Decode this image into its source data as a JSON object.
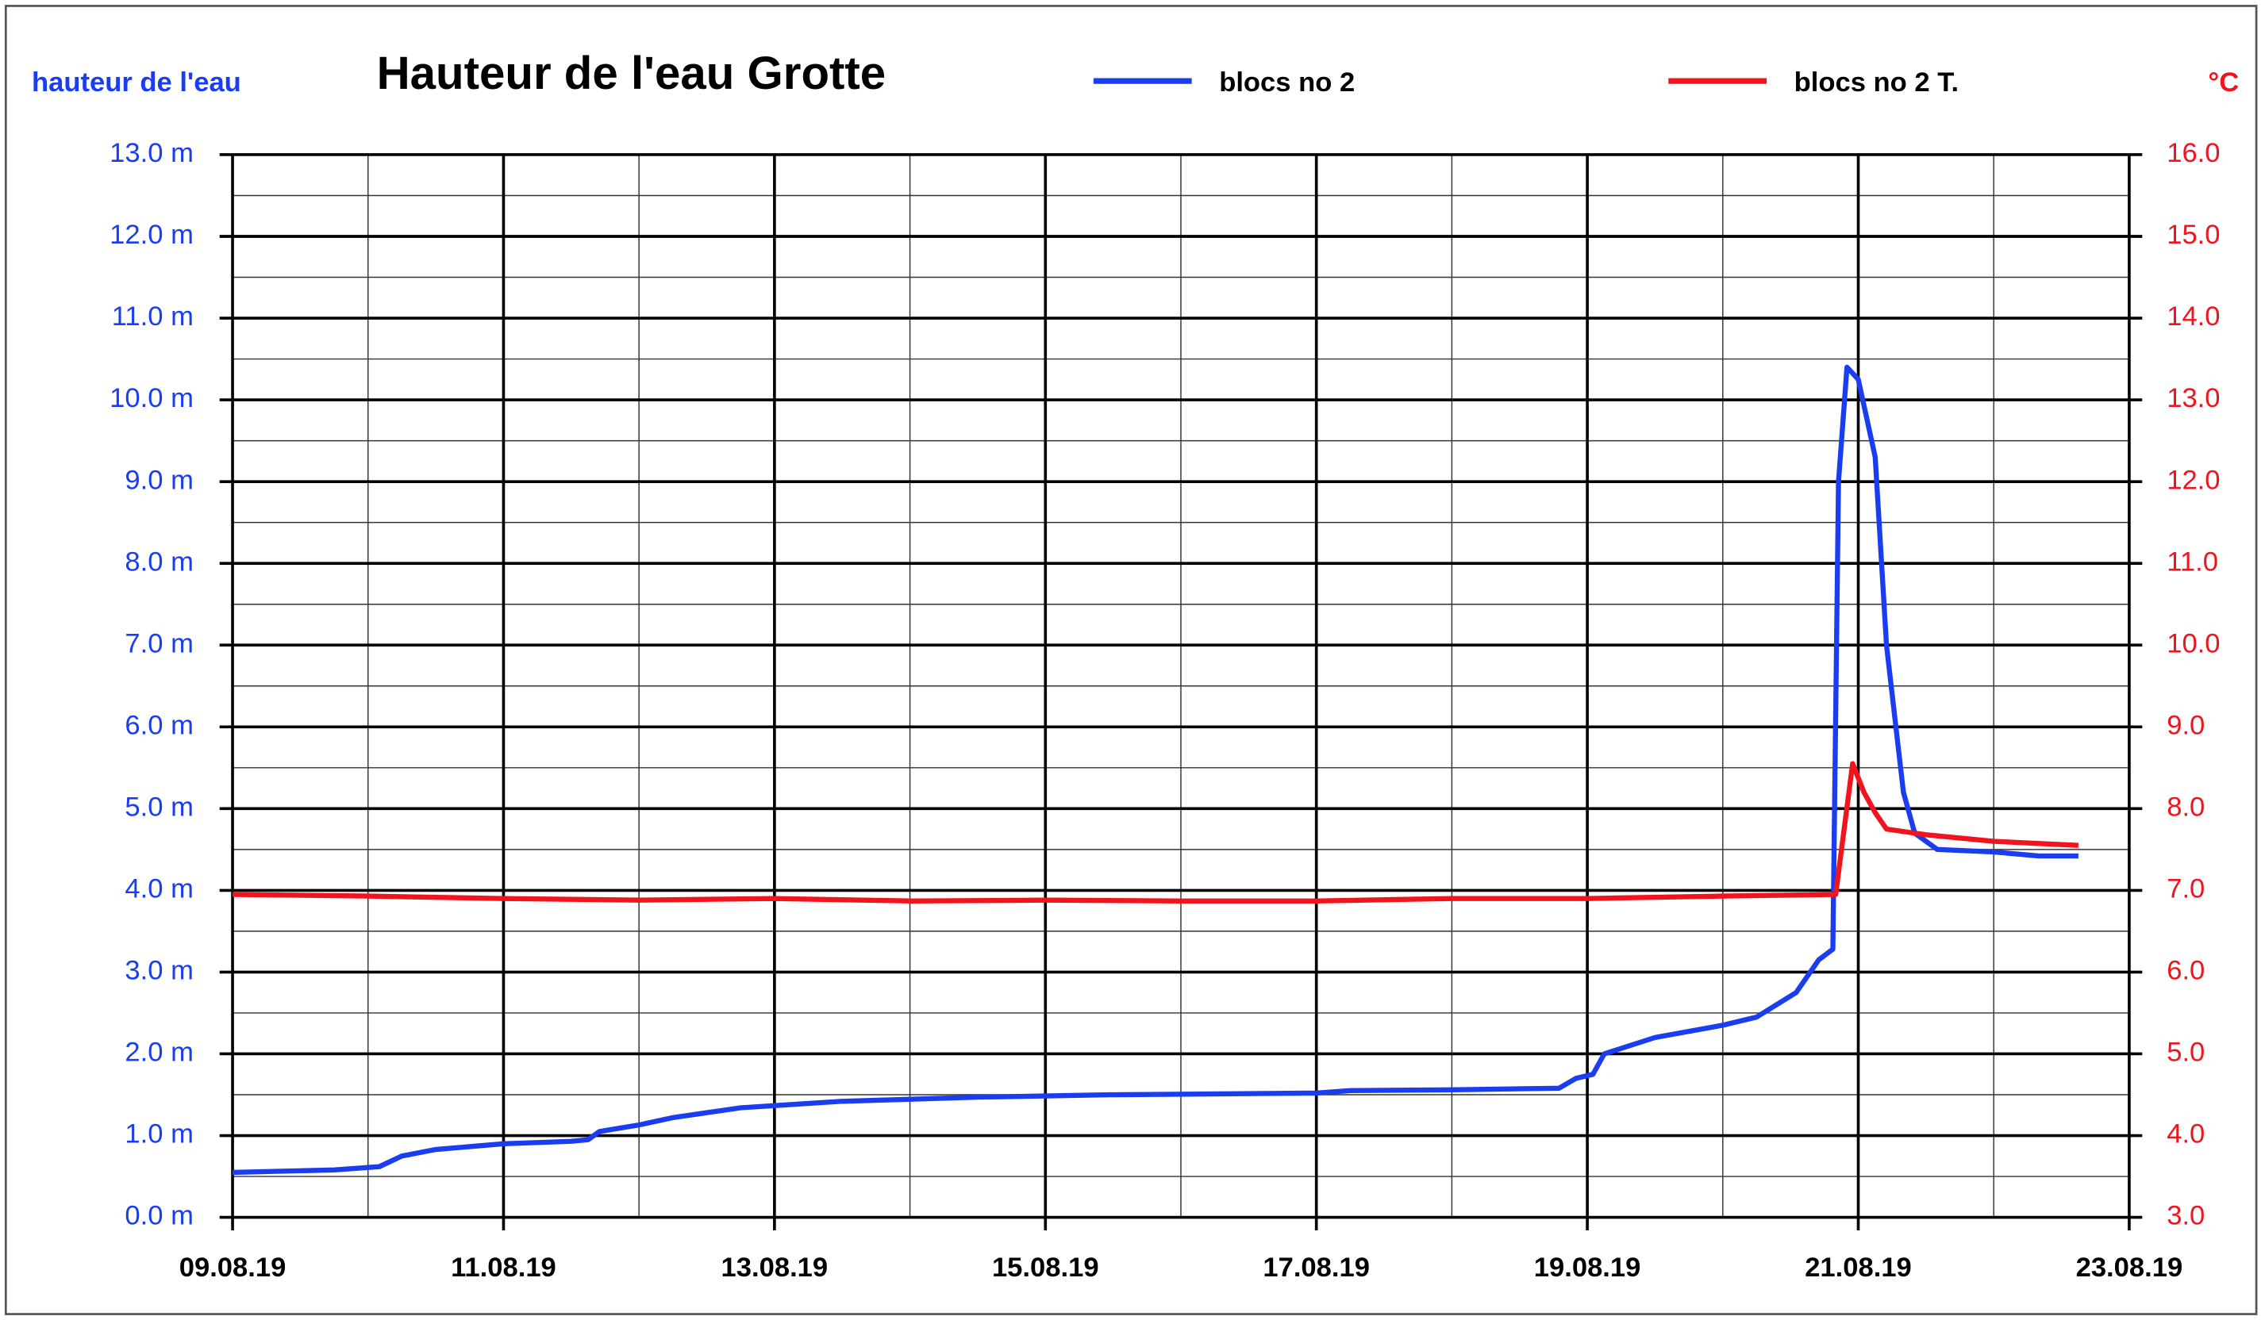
{
  "chart_data": {
    "type": "line",
    "title": "Hauteur de l'eau Grotte",
    "ylabel": "hauteur de l'eau",
    "y2label": "°C",
    "grid": true,
    "xlim": [
      "2019-08-09T00:00",
      "2019-08-23T00:00"
    ],
    "xticks": [
      {
        "value": "2019-08-09T00:00",
        "label": "09.08.19"
      },
      {
        "value": "2019-08-11T00:00",
        "label": "11.08.19"
      },
      {
        "value": "2019-08-13T00:00",
        "label": "13.08.19"
      },
      {
        "value": "2019-08-15T00:00",
        "label": "15.08.19"
      },
      {
        "value": "2019-08-17T00:00",
        "label": "17.08.19"
      },
      {
        "value": "2019-08-19T00:00",
        "label": "19.08.19"
      },
      {
        "value": "2019-08-21T00:00",
        "label": "21.08.19"
      },
      {
        "value": "2019-08-23T00:00",
        "label": "23.08.19"
      }
    ],
    "ylim": [
      0,
      13
    ],
    "yticks": [
      {
        "value": 0,
        "label": "0.0 m"
      },
      {
        "value": 1,
        "label": "1.0 m"
      },
      {
        "value": 2,
        "label": "2.0 m"
      },
      {
        "value": 3,
        "label": "3.0 m"
      },
      {
        "value": 4,
        "label": "4.0 m"
      },
      {
        "value": 5,
        "label": "5.0 m"
      },
      {
        "value": 6,
        "label": "6.0 m"
      },
      {
        "value": 7,
        "label": "7.0 m"
      },
      {
        "value": 8,
        "label": "8.0 m"
      },
      {
        "value": 9,
        "label": "9.0 m"
      },
      {
        "value": 10,
        "label": "10.0 m"
      },
      {
        "value": 11,
        "label": "11.0 m"
      },
      {
        "value": 12,
        "label": "12.0 m"
      },
      {
        "value": 13,
        "label": "13.0 m"
      }
    ],
    "y2lim": [
      3,
      16
    ],
    "y2ticks": [
      {
        "value": 3,
        "label": "3.0"
      },
      {
        "value": 4,
        "label": "4.0"
      },
      {
        "value": 5,
        "label": "5.0"
      },
      {
        "value": 6,
        "label": "6.0"
      },
      {
        "value": 7,
        "label": "7.0"
      },
      {
        "value": 8,
        "label": "8.0"
      },
      {
        "value": 9,
        "label": "9.0"
      },
      {
        "value": 10,
        "label": "10.0"
      },
      {
        "value": 11,
        "label": "11.0"
      },
      {
        "value": 12,
        "label": "12.0"
      },
      {
        "value": 13,
        "label": "13.0"
      },
      {
        "value": 14,
        "label": "14.0"
      },
      {
        "value": 15,
        "label": "15.0"
      },
      {
        "value": 16,
        "label": "16.0"
      }
    ],
    "series": [
      {
        "name": "blocs no 2",
        "color": "#1a3df0",
        "x": [
          "2019-08-09T00:00",
          "2019-08-09T18:00",
          "2019-08-10T02:00",
          "2019-08-10T06:00",
          "2019-08-10T12:00",
          "2019-08-11T00:00",
          "2019-08-11T12:00",
          "2019-08-11T15:00",
          "2019-08-11T17:00",
          "2019-08-12T00:00",
          "2019-08-12T06:00",
          "2019-08-12T18:00",
          "2019-08-13T12:00",
          "2019-08-14T12:00",
          "2019-08-15T12:00",
          "2019-08-17T00:00",
          "2019-08-17T06:00",
          "2019-08-18T00:00",
          "2019-08-18T19:00",
          "2019-08-18T22:00",
          "2019-08-19T01:00",
          "2019-08-19T03:00",
          "2019-08-19T12:00",
          "2019-08-20T00:00",
          "2019-08-20T06:00",
          "2019-08-20T13:00",
          "2019-08-20T17:00",
          "2019-08-20T19:30",
          "2019-08-20T20:30",
          "2019-08-20T22:00",
          "2019-08-21T00:00",
          "2019-08-21T03:00",
          "2019-08-21T05:00",
          "2019-08-21T08:00",
          "2019-08-21T10:00",
          "2019-08-21T14:00",
          "2019-08-22T00:00",
          "2019-08-22T08:00",
          "2019-08-22T15:00"
        ],
        "values": [
          0.55,
          0.58,
          0.62,
          0.75,
          0.83,
          0.9,
          0.93,
          0.95,
          1.05,
          1.13,
          1.22,
          1.34,
          1.42,
          1.47,
          1.5,
          1.52,
          1.55,
          1.56,
          1.58,
          1.7,
          1.75,
          2.0,
          2.2,
          2.35,
          2.45,
          2.75,
          3.15,
          3.28,
          9.0,
          10.4,
          10.25,
          9.3,
          7.0,
          5.2,
          4.7,
          4.5,
          4.47,
          4.42,
          4.42
        ]
      },
      {
        "name": "blocs no 2 T.",
        "color": "#f0141e",
        "axis": "y2",
        "x": [
          "2019-08-09T00:00",
          "2019-08-10T00:00",
          "2019-08-11T00:00",
          "2019-08-12T00:00",
          "2019-08-13T00:00",
          "2019-08-14T00:00",
          "2019-08-15T00:00",
          "2019-08-16T00:00",
          "2019-08-17T00:00",
          "2019-08-18T00:00",
          "2019-08-19T00:00",
          "2019-08-20T00:00",
          "2019-08-20T20:00",
          "2019-08-20T23:00",
          "2019-08-21T01:00",
          "2019-08-21T03:00",
          "2019-08-21T05:00",
          "2019-08-21T12:00",
          "2019-08-22T00:00",
          "2019-08-22T15:00"
        ],
        "values": [
          6.95,
          6.93,
          6.9,
          6.88,
          6.9,
          6.87,
          6.88,
          6.87,
          6.87,
          6.9,
          6.9,
          6.93,
          6.95,
          8.55,
          8.2,
          7.95,
          7.75,
          7.68,
          7.6,
          7.55
        ]
      }
    ]
  }
}
